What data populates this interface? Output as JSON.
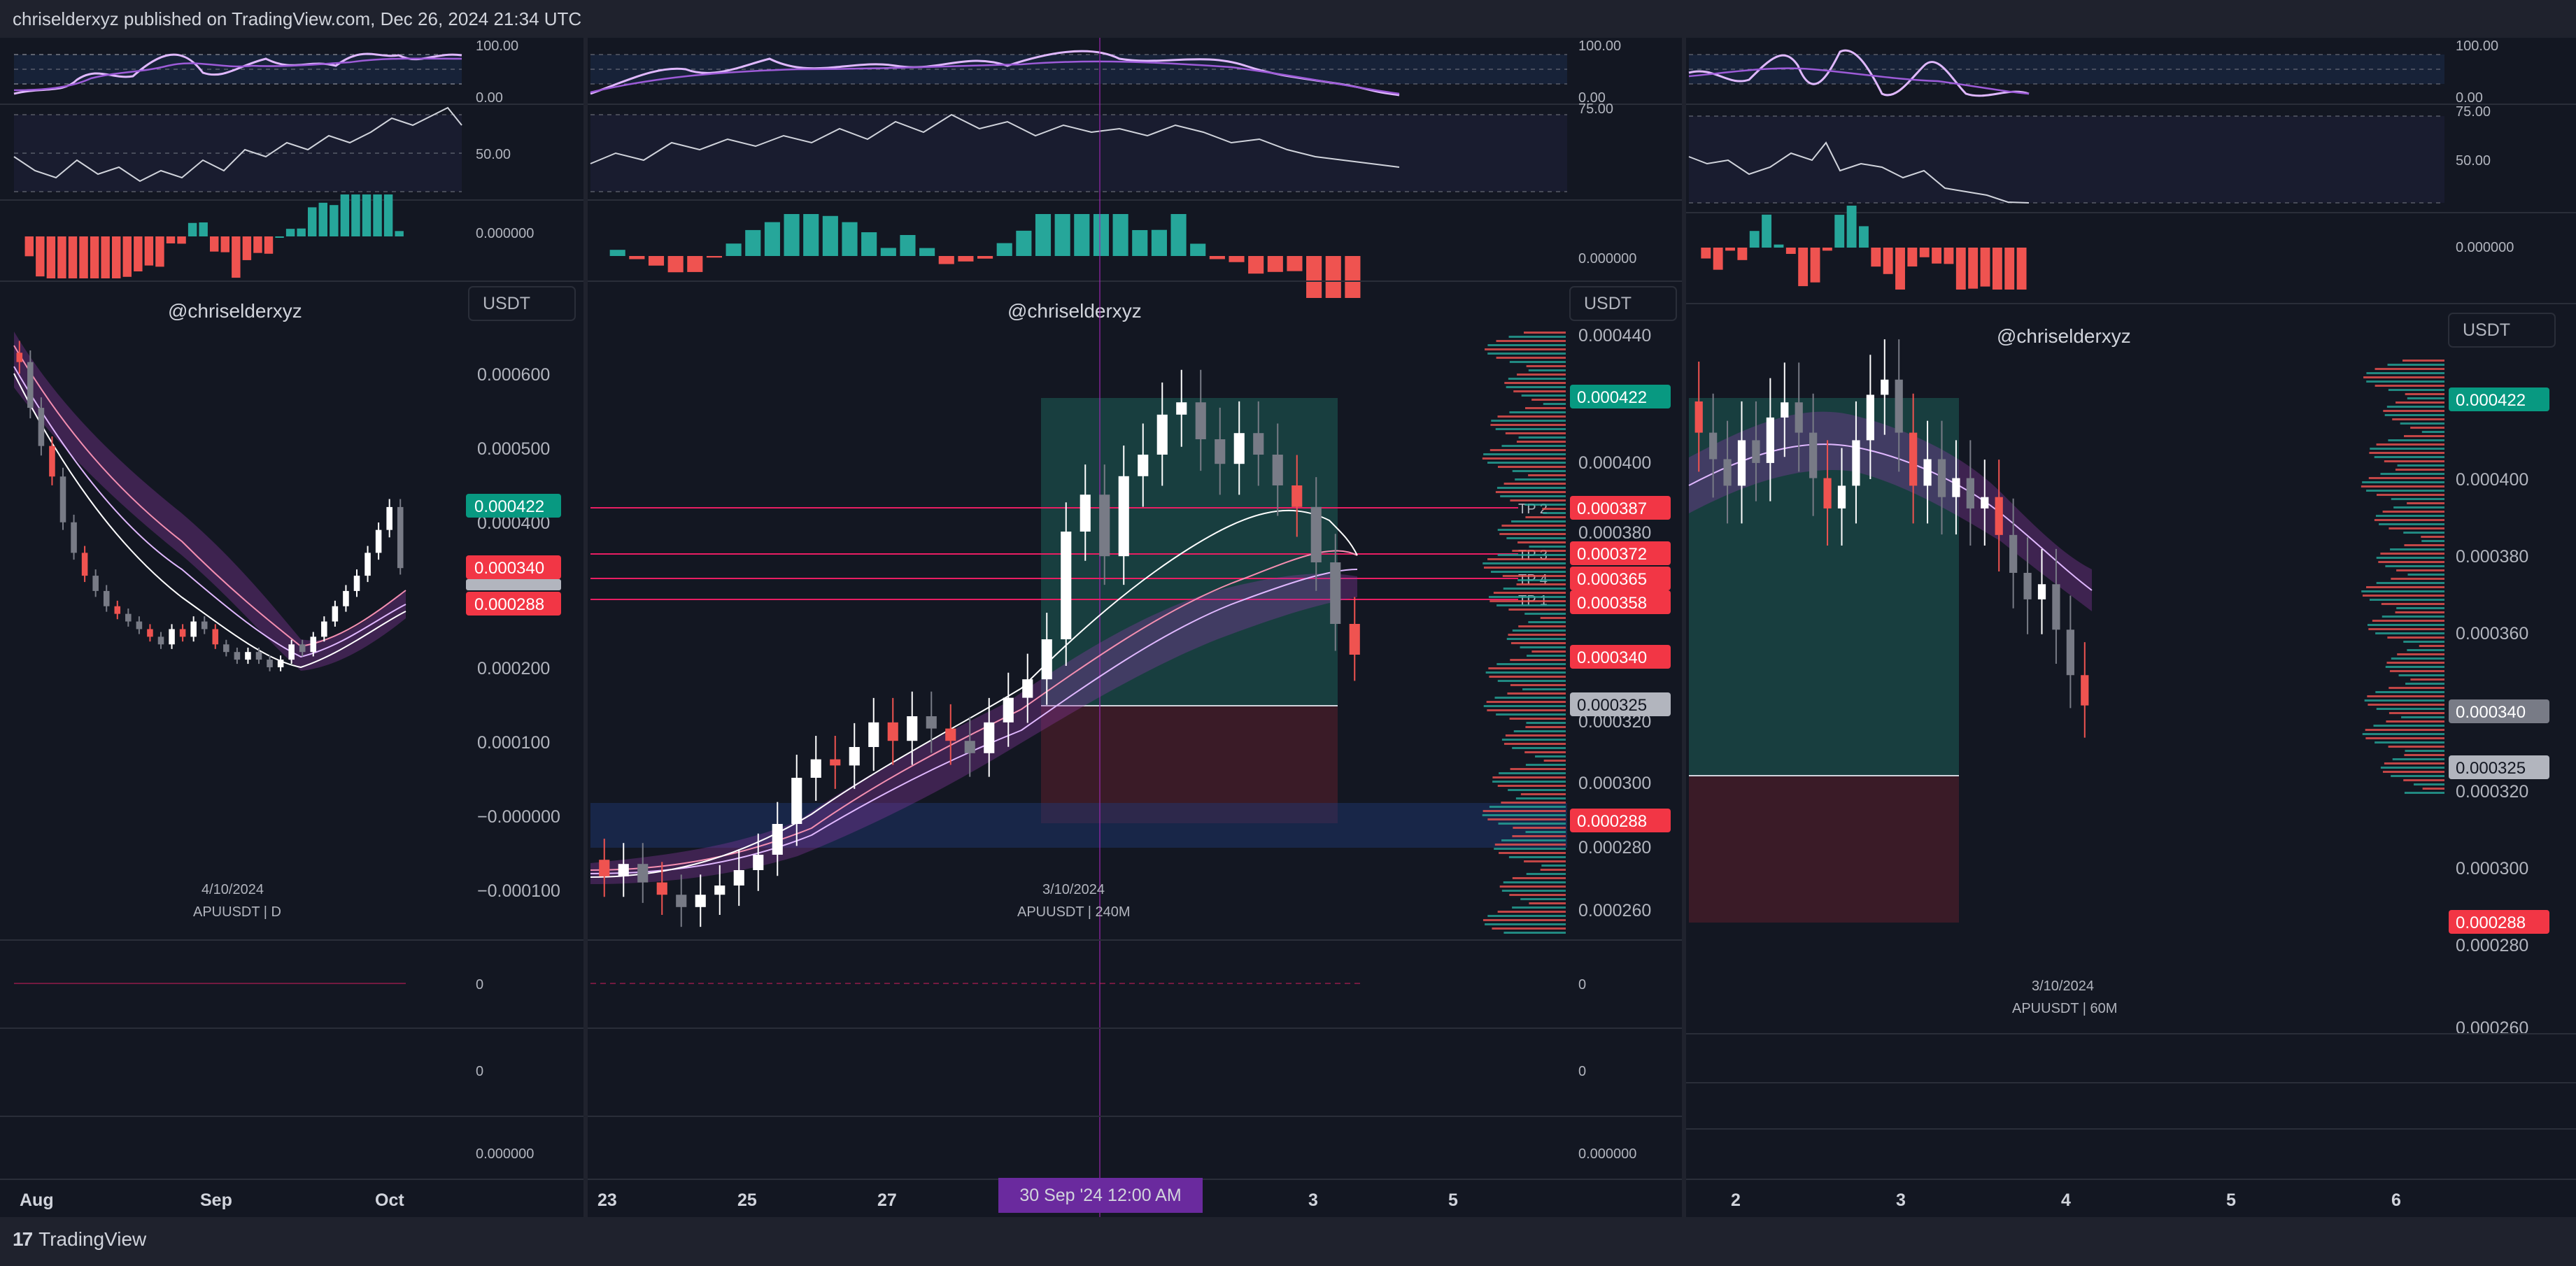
{
  "header": {
    "published": "chriselderxyz published on TradingView.com, Dec 26, 2024 21:34 UTC"
  },
  "footer": {
    "brand": "TradingView",
    "brand_mark": "17"
  },
  "colors": {
    "bg": "#131722",
    "up": "#26a69a",
    "down": "#ef5350",
    "grey_candle": "#787b86",
    "green_tag": "#089981",
    "red_tag": "#f23645",
    "grey_tag": "#b2b5be",
    "tp_line": "#e91e63",
    "crosshair": "#9c27b0"
  },
  "chart_data": [
    {
      "id": "daily",
      "type": "candlestick",
      "symbol_label": "APUUSDT | D",
      "date_label": "4/10/2024",
      "watermark": "@chriselderxyz",
      "currency": "USDT",
      "y_ticks": [
        "0.000600",
        "0.000500",
        "0.000400",
        "0.000200",
        "0.000100",
        "−0.000000",
        "−0.000100"
      ],
      "price_tags": [
        "0.000422",
        "0.000340",
        "0.000288"
      ],
      "x_ticks": [
        "Aug",
        "Sep",
        "Oct"
      ],
      "rsi_ticks": [
        "100.00",
        "0.00"
      ],
      "stoch_ticks": [
        "50.00"
      ],
      "macd_ticks": [
        "0.000000"
      ],
      "lower_ticks": [
        "0",
        "0",
        "0.000000"
      ],
      "closes": [
        0.00061,
        0.00055,
        0.0005,
        0.00046,
        0.0004,
        0.00036,
        0.00033,
        0.00031,
        0.00029,
        0.00028,
        0.00027,
        0.00026,
        0.00025,
        0.00024,
        0.00026,
        0.00025,
        0.00027,
        0.00026,
        0.00024,
        0.00023,
        0.00022,
        0.00023,
        0.00022,
        0.00021,
        0.00022,
        0.00024,
        0.00023,
        0.00025,
        0.00027,
        0.00029,
        0.00031,
        0.00033,
        0.00036,
        0.00039,
        0.00042,
        0.00034
      ]
    },
    {
      "id": "h4",
      "type": "candlestick",
      "symbol_label": "APUUSDT | 240M",
      "date_label": "3/10/2024",
      "watermark": "@chriselderxyz",
      "currency": "USDT",
      "y_ticks": [
        "0.000440",
        "0.000400",
        "0.000380",
        "0.000320",
        "0.000300",
        "0.000280",
        "0.000260"
      ],
      "price_tags": [
        "0.000422",
        "0.000387",
        "0.000372",
        "0.000365",
        "0.000358",
        "0.000340",
        "0.000325",
        "0.000288"
      ],
      "tp_levels": [
        {
          "label": "TP 2",
          "value": "0.000387"
        },
        {
          "label": "TP 3",
          "value": "0.000372"
        },
        {
          "label": "TP 4",
          "value": "0.000365"
        },
        {
          "label": "TP 1",
          "value": "0.000358"
        }
      ],
      "position": {
        "target": 0.000422,
        "entry": 0.000325,
        "stop": 0.000288
      },
      "x_ticks": [
        "23",
        "25",
        "27",
        "3",
        "5"
      ],
      "crosshair_time": "30 Sep '24   12:00 AM",
      "rsi_ticks": [
        "100.00",
        "0.00"
      ],
      "stoch_ticks": [
        "75.00"
      ],
      "macd_ticks": [
        "0.000000"
      ],
      "lower_ticks": [
        "0",
        "0",
        "0.000000"
      ],
      "closes": [
        0.000268,
        0.000272,
        0.000266,
        0.000262,
        0.000258,
        0.000262,
        0.000265,
        0.00027,
        0.000275,
        0.000285,
        0.0003,
        0.000306,
        0.000304,
        0.00031,
        0.000318,
        0.000312,
        0.00032,
        0.000316,
        0.000312,
        0.000308,
        0.000318,
        0.000326,
        0.000332,
        0.000345,
        0.00038,
        0.000392,
        0.000372,
        0.000398,
        0.000405,
        0.000418,
        0.000422,
        0.00041,
        0.000402,
        0.000412,
        0.000405,
        0.000395,
        0.000388,
        0.00037,
        0.00035,
        0.00034
      ]
    },
    {
      "id": "h1",
      "type": "candlestick",
      "symbol_label": "APUUSDT | 60M",
      "date_label": "3/10/2024",
      "watermark": "@chriselderxyz",
      "currency": "USDT",
      "y_ticks": [
        "0.000400",
        "0.000380",
        "0.000360",
        "0.000320",
        "0.000300",
        "0.000280",
        "0.000260"
      ],
      "price_tags": [
        "0.000422",
        "0.000340",
        "0.000325",
        "0.000288"
      ],
      "position": {
        "target": 0.000422,
        "entry": 0.000325,
        "stop": 0.000288
      },
      "x_ticks": [
        "2",
        "3",
        "4",
        "5",
        "6"
      ],
      "rsi_ticks": [
        "100.00",
        "0.00"
      ],
      "stoch_ticks": [
        "75.00",
        "50.00"
      ],
      "macd_ticks": [
        "0.000000"
      ],
      "closes": [
        0.000412,
        0.000405,
        0.000398,
        0.00041,
        0.000404,
        0.000416,
        0.00042,
        0.000412,
        0.0004,
        0.000392,
        0.000398,
        0.00041,
        0.000422,
        0.000426,
        0.000412,
        0.000398,
        0.000405,
        0.000395,
        0.0004,
        0.000392,
        0.000395,
        0.000385,
        0.000375,
        0.000368,
        0.000372,
        0.00036,
        0.000348,
        0.00034
      ]
    }
  ]
}
